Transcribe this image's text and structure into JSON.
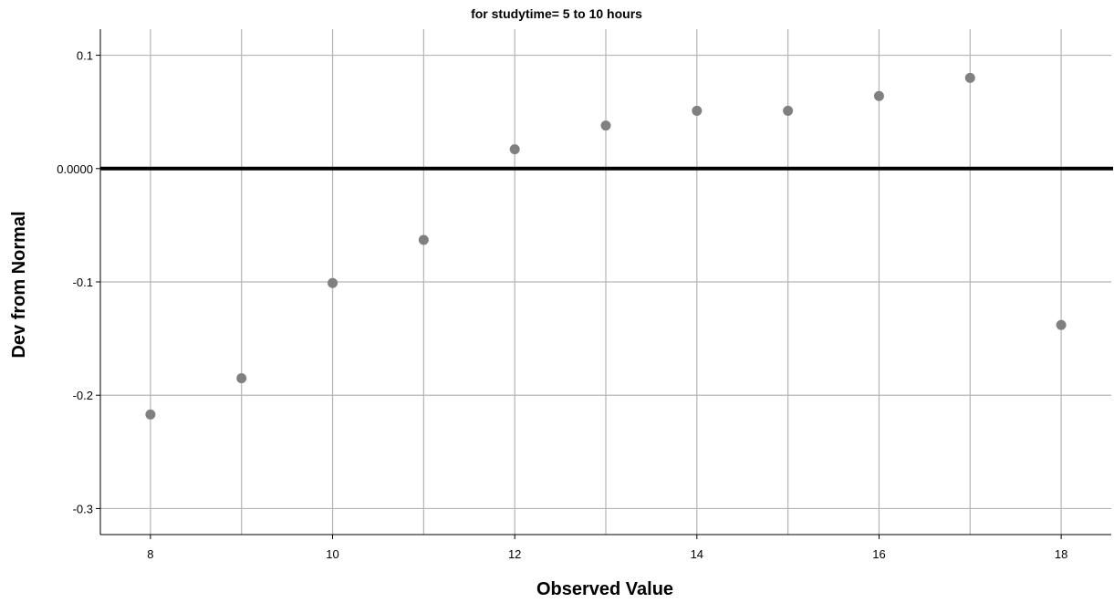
{
  "chart_data": {
    "type": "scatter",
    "title": "for studytime= 5 to 10 hours",
    "xlabel": "Observed Value",
    "ylabel": "Dev from Normal",
    "xlim": [
      7.45,
      18.55
    ],
    "ylim": [
      -0.323,
      0.123
    ],
    "x_ticks": [
      8,
      10,
      12,
      14,
      16,
      18
    ],
    "x_tick_labels": [
      "8",
      "10",
      "12",
      "14",
      "16",
      "18"
    ],
    "x_gridlines": [
      8,
      9,
      10,
      11,
      12,
      13,
      14,
      15,
      16,
      17,
      18
    ],
    "y_ticks": [
      0.1,
      0.0,
      -0.1,
      -0.2,
      -0.3
    ],
    "y_tick_labels": [
      "0.1",
      "0.0000",
      "-0.1",
      "-0.2",
      "-0.3"
    ],
    "reference_line_y": 0.0,
    "grid": true,
    "point_color": "#808080",
    "points": [
      {
        "x": 8,
        "y": -0.217
      },
      {
        "x": 9,
        "y": -0.185
      },
      {
        "x": 10,
        "y": -0.101
      },
      {
        "x": 11,
        "y": -0.063
      },
      {
        "x": 12,
        "y": 0.017
      },
      {
        "x": 13,
        "y": 0.038
      },
      {
        "x": 14,
        "y": 0.051
      },
      {
        "x": 15,
        "y": 0.051
      },
      {
        "x": 16,
        "y": 0.064
      },
      {
        "x": 17,
        "y": 0.08
      },
      {
        "x": 18,
        "y": -0.138
      }
    ]
  }
}
